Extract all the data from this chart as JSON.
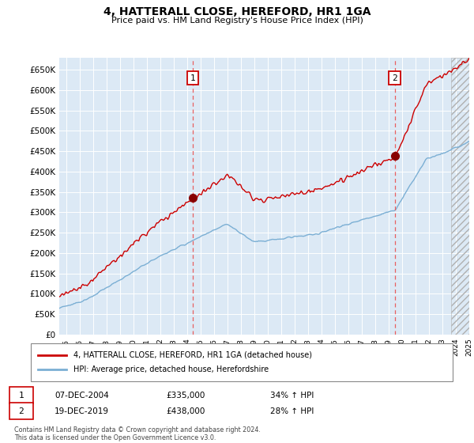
{
  "title": "4, HATTERALL CLOSE, HEREFORD, HR1 1GA",
  "subtitle": "Price paid vs. HM Land Registry's House Price Index (HPI)",
  "red_label": "4, HATTERALL CLOSE, HEREFORD, HR1 1GA (detached house)",
  "blue_label": "HPI: Average price, detached house, Herefordshire",
  "annotation1": {
    "num": "1",
    "date": "07-DEC-2004",
    "price": "£335,000",
    "pct": "34% ↑ HPI"
  },
  "annotation2": {
    "num": "2",
    "date": "19-DEC-2019",
    "price": "£438,000",
    "pct": "28% ↑ HPI"
  },
  "footnote": "Contains HM Land Registry data © Crown copyright and database right 2024.\nThis data is licensed under the Open Government Licence v3.0.",
  "ylim": [
    0,
    680000
  ],
  "yticks": [
    0,
    50000,
    100000,
    150000,
    200000,
    250000,
    300000,
    350000,
    400000,
    450000,
    500000,
    550000,
    600000,
    650000
  ],
  "background_color": "#dce9f5",
  "red_color": "#cc0000",
  "blue_color": "#7bafd4",
  "vline_color": "#e86060",
  "marker1_year": 2004.92,
  "marker1_value": 335000,
  "marker2_year": 2019.96,
  "marker2_value": 438000,
  "hatch_start_year": 2024.17,
  "xlim_start": 1995.0,
  "xlim_end": 2025.5
}
